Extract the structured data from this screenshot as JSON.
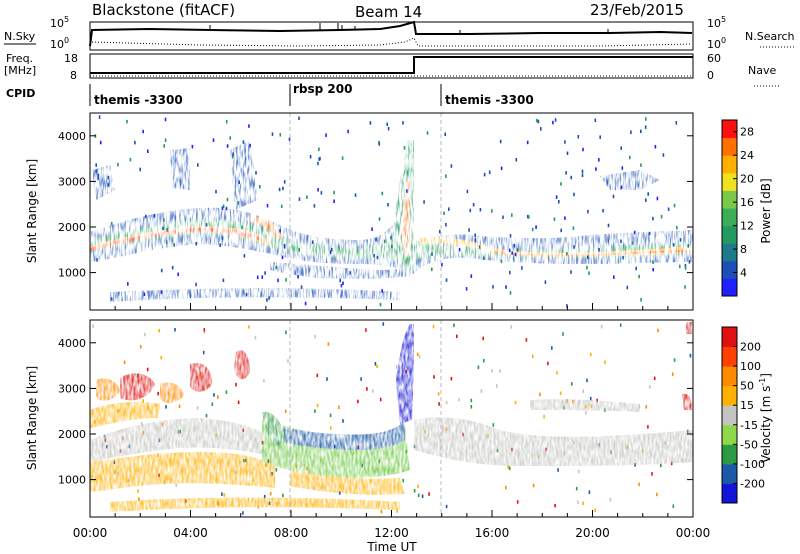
{
  "header": {
    "station": "Blackstone (fitACF)",
    "beam": "Beam 14",
    "date": "23/Feb/2015"
  },
  "nsky_panel": {
    "label": "N.Sky",
    "right_label": "N.Search",
    "left_ticks": [
      "10^5",
      "10^0"
    ],
    "right_ticks": [
      "10^5",
      "10^0"
    ]
  },
  "freq_panel": {
    "label_line1": "Freq.",
    "label_line2": "[MHz]",
    "left_ticks": [
      "18",
      "8"
    ],
    "right_ticks": [
      "60",
      "0"
    ],
    "right_label": "Nave"
  },
  "cpid_panel": {
    "label": "CPID",
    "segments": [
      "themis -3300",
      "rbsp 200",
      "themis -3300"
    ]
  },
  "chart_data": [
    {
      "type": "heatmap",
      "title": "Power",
      "ylabel": "Slant Range [km]",
      "xlabel": "",
      "ylim": [
        180,
        4500
      ],
      "xlim_hours": [
        0,
        24
      ],
      "y_ticks": [
        "1000",
        "2000",
        "3000",
        "4000"
      ],
      "colorbar": {
        "label": "Power [dB]",
        "ticks": [
          "28",
          "24",
          "20",
          "16",
          "12",
          "8",
          "4"
        ],
        "range": [
          0,
          30
        ],
        "colors": [
          "#2020ff",
          "#1c50b8",
          "#1c7a8a",
          "#249a60",
          "#3cae58",
          "#7cc84a",
          "#f0e020",
          "#ffb000",
          "#ff7000",
          "#ff1010"
        ]
      },
      "dominant_band": [
        {
          "t": 0.0,
          "range": 1450
        },
        {
          "t": 2.0,
          "range": 1850
        },
        {
          "t": 4.0,
          "range": 2000
        },
        {
          "t": 6.0,
          "range": 2100
        },
        {
          "t": 7.0,
          "range": 1700
        },
        {
          "t": 8.0,
          "range": 1450
        },
        {
          "t": 10.0,
          "range": 1400
        },
        {
          "t": 12.0,
          "range": 1450
        },
        {
          "t": 13.0,
          "range": 1500
        },
        {
          "t": 14.0,
          "range": 1600
        },
        {
          "t": 16.0,
          "range": 1500
        },
        {
          "t": 18.0,
          "range": 1350
        },
        {
          "t": 20.0,
          "range": 1350
        },
        {
          "t": 22.0,
          "range": 1450
        },
        {
          "t": 24.0,
          "range": 1500
        }
      ]
    },
    {
      "type": "heatmap",
      "title": "Velocity",
      "ylabel": "Slant Range [km]",
      "xlabel": "Time UT",
      "ylim": [
        180,
        4500
      ],
      "xlim_hours": [
        0,
        24
      ],
      "y_ticks": [
        "1000",
        "2000",
        "3000",
        "4000"
      ],
      "x_ticks": [
        "00:00",
        "04:00",
        "08:00",
        "12:00",
        "16:00",
        "20:00",
        "00:00"
      ],
      "colorbar": {
        "label": "Velocity [m s^-1]",
        "ticks": [
          "200",
          "100",
          "50",
          "15",
          "-15",
          "-50",
          "-100",
          "-200"
        ],
        "colors": [
          "#1414d8",
          "#1c5aa8",
          "#2c9a40",
          "#8ed84a",
          "#c4c4c0",
          "#ffb000",
          "#ff8c00",
          "#ff4000",
          "#e01010"
        ]
      }
    }
  ]
}
